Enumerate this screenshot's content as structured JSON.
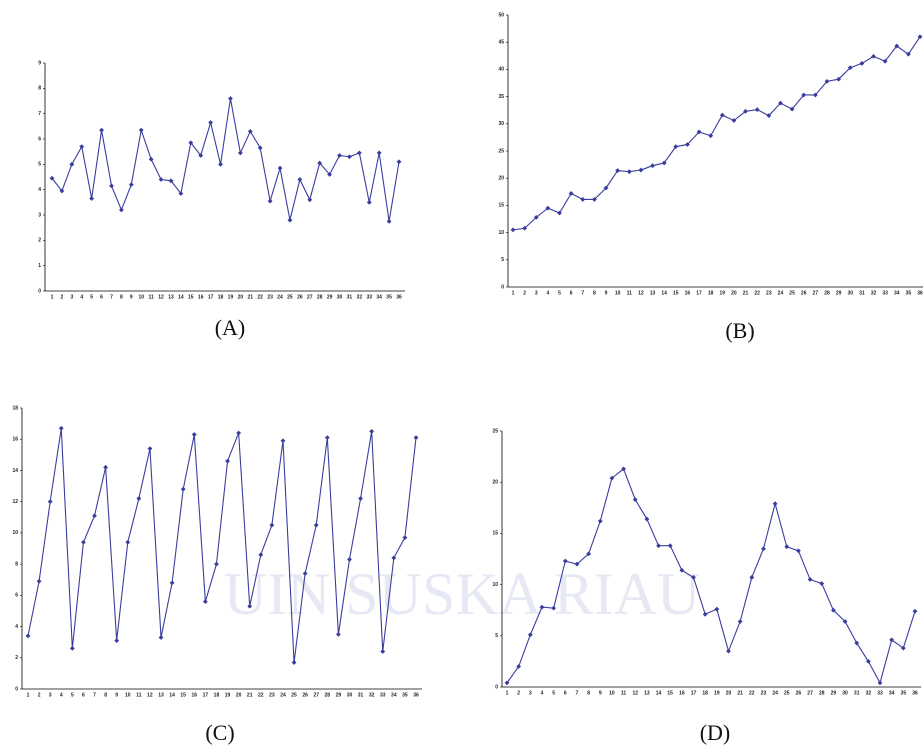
{
  "watermark": "UIN SUSKA RIAU",
  "chart_data": [
    {
      "type": "line",
      "caption": "(A)",
      "color": "#3a3d9e",
      "categories": [
        1,
        2,
        3,
        4,
        5,
        6,
        7,
        8,
        9,
        10,
        11,
        12,
        13,
        14,
        15,
        16,
        17,
        18,
        19,
        20,
        21,
        22,
        23,
        24,
        25,
        26,
        27,
        28,
        29,
        30,
        31,
        32,
        33,
        34,
        35,
        36
      ],
      "values": [
        4.45,
        3.95,
        5.0,
        5.7,
        3.65,
        6.35,
        4.15,
        3.2,
        4.2,
        6.35,
        5.2,
        4.4,
        4.35,
        3.85,
        5.85,
        5.35,
        6.65,
        5.0,
        7.6,
        5.45,
        6.3,
        5.65,
        3.55,
        4.85,
        2.8,
        4.4,
        3.6,
        5.05,
        4.6,
        5.35,
        5.3,
        5.45,
        3.5,
        5.45,
        2.75,
        5.1
      ],
      "ylim": [
        0,
        9
      ],
      "yticks": [
        0,
        1,
        2,
        3,
        4,
        5,
        6,
        7,
        8,
        9
      ]
    },
    {
      "type": "line",
      "caption": "(B)",
      "color": "#3a3d9e",
      "categories": [
        1,
        2,
        3,
        4,
        5,
        6,
        7,
        8,
        9,
        10,
        11,
        12,
        13,
        14,
        15,
        16,
        17,
        18,
        19,
        20,
        21,
        22,
        23,
        24,
        25,
        26,
        27,
        28,
        29,
        30,
        31,
        32,
        33,
        34,
        35,
        36
      ],
      "values": [
        10.5,
        10.8,
        12.8,
        14.5,
        13.6,
        17.2,
        16.1,
        16.1,
        18.2,
        21.4,
        21.2,
        21.5,
        22.3,
        22.8,
        25.8,
        26.2,
        28.5,
        27.8,
        31.6,
        30.6,
        32.3,
        32.6,
        31.5,
        33.8,
        32.7,
        35.3,
        35.3,
        37.8,
        38.2,
        40.3,
        41.1,
        42.4,
        41.5,
        44.3,
        42.8,
        46.0
      ],
      "ylim": [
        0,
        50
      ],
      "yticks": [
        0,
        5,
        10,
        15,
        20,
        25,
        30,
        35,
        40,
        45,
        50
      ]
    },
    {
      "type": "line",
      "caption": "(C)",
      "color": "#3a3d9e",
      "categories": [
        1,
        2,
        3,
        4,
        5,
        6,
        7,
        8,
        9,
        10,
        11,
        12,
        13,
        14,
        15,
        16,
        17,
        18,
        19,
        20,
        21,
        22,
        23,
        24,
        25,
        26,
        27,
        28,
        29,
        30,
        31,
        32,
        33,
        34,
        35,
        36
      ],
      "values": [
        3.4,
        6.9,
        12.0,
        16.7,
        2.6,
        9.4,
        11.1,
        14.2,
        3.1,
        9.4,
        12.2,
        15.4,
        3.3,
        6.8,
        12.8,
        16.3,
        5.6,
        8.0,
        14.6,
        16.4,
        5.3,
        8.6,
        10.5,
        15.9,
        1.7,
        7.4,
        10.5,
        16.1,
        3.5,
        8.3,
        12.2,
        16.5,
        2.4,
        8.4,
        9.7,
        16.1
      ],
      "ylim": [
        0,
        18
      ],
      "yticks": [
        0,
        2,
        4,
        6,
        8,
        10,
        12,
        14,
        16,
        18
      ]
    },
    {
      "type": "line",
      "caption": "(D)",
      "color": "#3a3d9e",
      "categories": [
        1,
        2,
        3,
        4,
        5,
        6,
        7,
        8,
        9,
        10,
        11,
        12,
        13,
        14,
        15,
        16,
        17,
        18,
        19,
        20,
        21,
        22,
        23,
        24,
        25,
        26,
        27,
        28,
        29,
        30,
        31,
        32,
        33,
        34,
        35,
        36
      ],
      "values": [
        0.4,
        2.0,
        5.1,
        7.8,
        7.7,
        12.3,
        12.0,
        13.0,
        16.2,
        20.4,
        21.3,
        18.3,
        16.4,
        13.8,
        13.8,
        11.4,
        10.7,
        7.1,
        7.6,
        3.5,
        6.4,
        10.7,
        13.5,
        17.9,
        13.7,
        13.3,
        10.5,
        10.1,
        7.5,
        6.4,
        4.3,
        2.5,
        0.4,
        4.6,
        3.8,
        7.4
      ],
      "ylim": [
        0,
        25
      ],
      "yticks": [
        0,
        5,
        10,
        15,
        20,
        25
      ]
    }
  ]
}
